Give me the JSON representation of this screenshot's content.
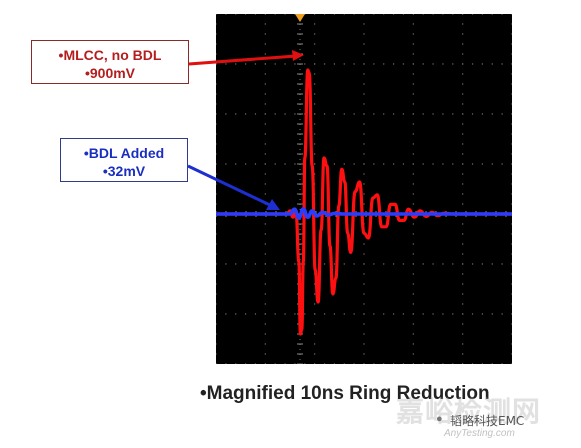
{
  "chart_data": {
    "type": "line",
    "x_unit": "ns",
    "xlim": [
      0,
      10
    ],
    "ylim": [
      -1,
      1
    ],
    "grid": true,
    "series": [
      {
        "name": "MLCC, no BDL",
        "color": "#ff1010",
        "peak_label": "900mV",
        "x": [
          0,
          2.4,
          2.5,
          2.6,
          2.7,
          2.8,
          2.85,
          2.9,
          2.95,
          3.0,
          3.1,
          3.15,
          3.25,
          3.35,
          3.45,
          3.55,
          3.65,
          3.75,
          3.85,
          3.95,
          4.05,
          4.15,
          4.25,
          4.35,
          4.45,
          4.55,
          4.7,
          4.85,
          5.0,
          5.15,
          5.3,
          5.45,
          5.6,
          5.75,
          5.9,
          6.05,
          6.2,
          6.35,
          6.5,
          6.7,
          6.9,
          7.1,
          7.3,
          7.5,
          7.7,
          8.0,
          10
        ],
        "y": [
          0,
          0,
          0.02,
          -0.02,
          0.02,
          -0.3,
          -0.75,
          -0.72,
          -0.3,
          0.35,
          0.9,
          0.88,
          0.3,
          -0.35,
          -0.55,
          -0.1,
          0.35,
          0.3,
          -0.2,
          -0.5,
          -0.4,
          0.05,
          0.28,
          0.2,
          -0.12,
          -0.24,
          0.14,
          0.2,
          -0.12,
          -0.15,
          0.1,
          0.12,
          -0.08,
          -0.08,
          0.06,
          0.06,
          -0.04,
          -0.04,
          0.03,
          -0.02,
          0.02,
          -0.015,
          0.01,
          -0.01,
          0.005,
          0,
          0
        ]
      },
      {
        "name": "BDL Added",
        "color": "#2a3cff",
        "peak_label": "32mV",
        "x": [
          0,
          2.5,
          2.65,
          2.8,
          2.95,
          3.1,
          3.25,
          3.4,
          3.6,
          3.8,
          4.0,
          4.3,
          10
        ],
        "y": [
          0,
          0,
          0.03,
          -0.025,
          0.032,
          -0.02,
          0.02,
          -0.012,
          0.01,
          -0.006,
          0.004,
          0,
          0
        ]
      }
    ],
    "annotations": [
      {
        "series": "MLCC, no BDL",
        "lines": [
          "•MLCC, no BDL",
          "•900mV"
        ]
      },
      {
        "series": "BDL Added",
        "lines": [
          "•BDL Added",
          "•32mV"
        ]
      }
    ]
  },
  "callouts": {
    "red": {
      "line1": "•MLCC, no BDL",
      "line2": "•900mV"
    },
    "blue": {
      "line1": "•BDL Added",
      "line2": "•32mV"
    }
  },
  "caption": "•Magnified 10ns Ring Reduction",
  "watermark": {
    "big": "嘉峪检测网",
    "small": "韬略科技EMC",
    "sub": "AnyTesting.com"
  }
}
